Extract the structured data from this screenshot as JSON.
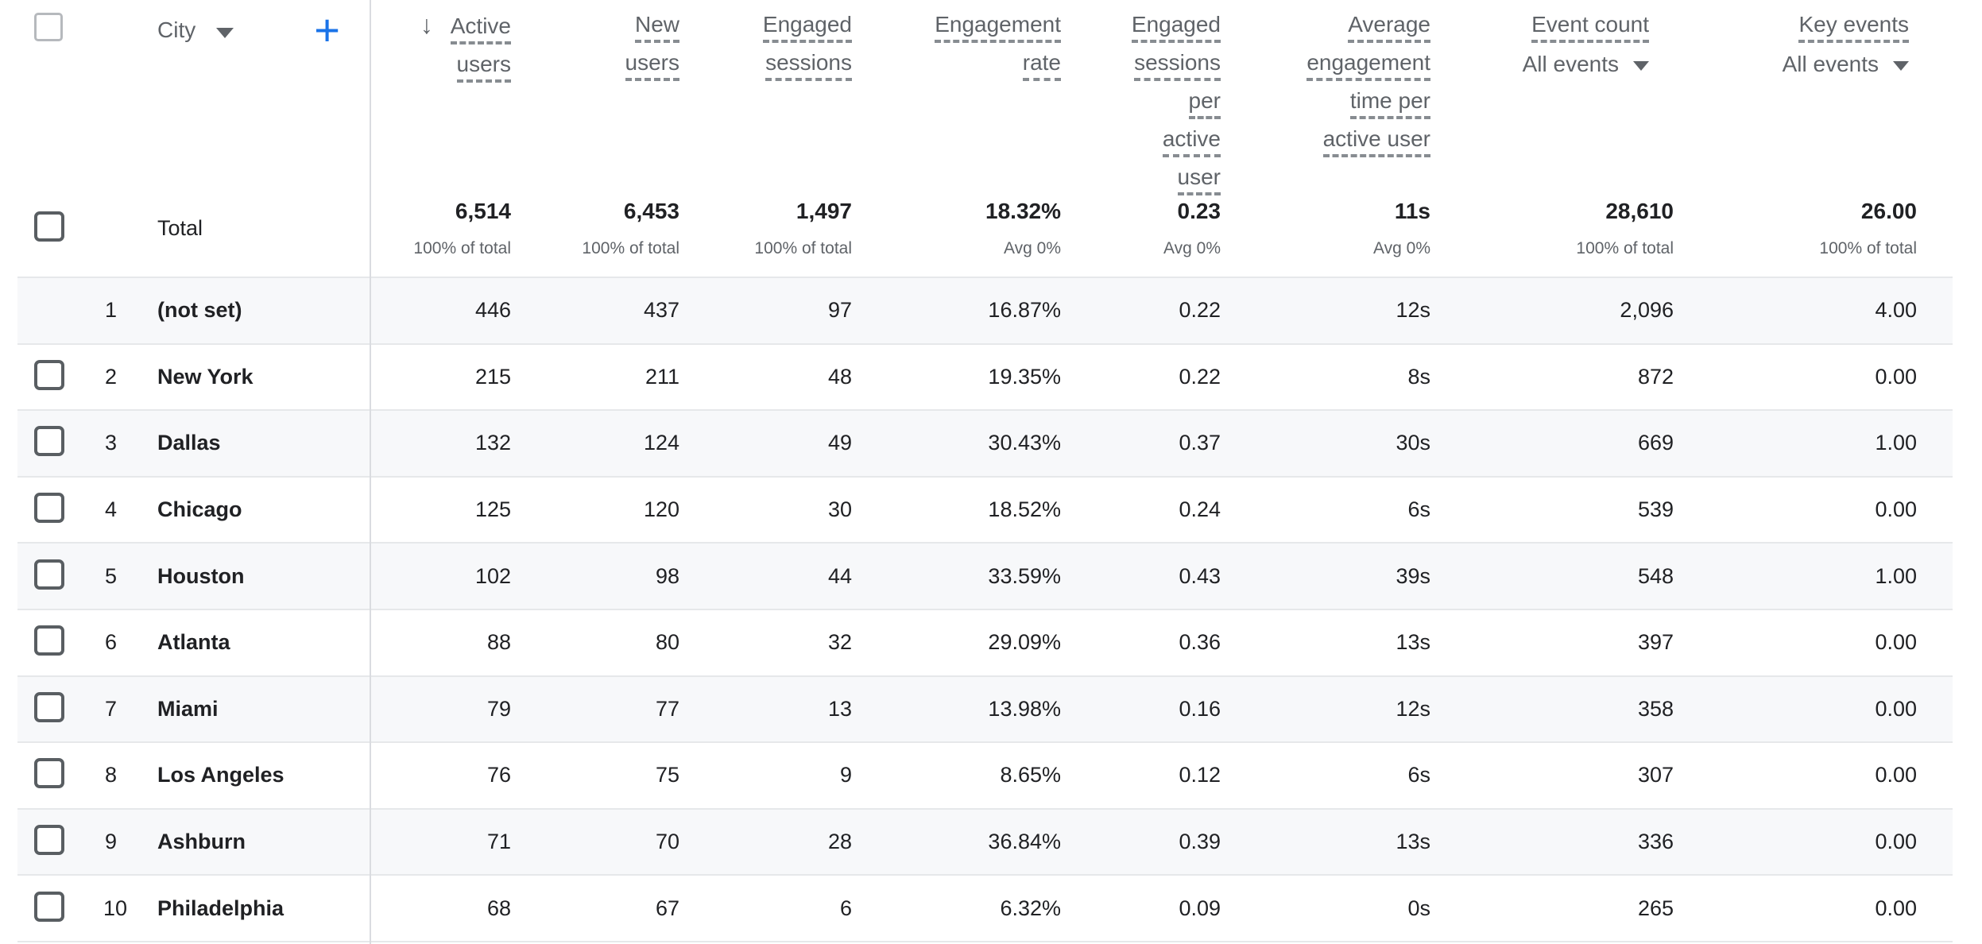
{
  "accent_color": "#1a73e8",
  "divider_color": "#dadce0",
  "stripe_color": "#f7f8fa",
  "header": {
    "dimension": {
      "label": "City"
    },
    "add_button": "+",
    "sort_icon": "↓",
    "columns": [
      {
        "id": "active-users",
        "lines": [
          "Active",
          "users"
        ],
        "sorted": true
      },
      {
        "id": "new-users",
        "lines": [
          "New",
          "users"
        ]
      },
      {
        "id": "engaged-sessions",
        "lines": [
          "Engaged",
          "sessions"
        ]
      },
      {
        "id": "engagement-rate",
        "lines": [
          "Engagement",
          "rate"
        ]
      },
      {
        "id": "engaged-sessions-per-active-user",
        "lines": [
          "Engaged",
          "sessions",
          "per",
          "active",
          "user"
        ]
      },
      {
        "id": "average-engagement-time-per-active-user",
        "lines": [
          "Average",
          "engagement",
          "time per",
          "active user"
        ]
      },
      {
        "id": "event-count",
        "lines": [
          "Event count"
        ],
        "filter": "All events"
      },
      {
        "id": "key-events",
        "lines": [
          "Key events"
        ],
        "filter": "All events"
      }
    ]
  },
  "total_row": {
    "label": "Total",
    "cells": [
      {
        "value": "6,514",
        "sub": "100% of total"
      },
      {
        "value": "6,453",
        "sub": "100% of total"
      },
      {
        "value": "1,497",
        "sub": "100% of total"
      },
      {
        "value": "18.32%",
        "sub": "Avg 0%"
      },
      {
        "value": "0.23",
        "sub": "Avg 0%"
      },
      {
        "value": "11s",
        "sub": "Avg 0%"
      },
      {
        "value": "28,610",
        "sub": "100% of total"
      },
      {
        "value": "26.00",
        "sub": "100% of total"
      }
    ]
  },
  "rows": [
    {
      "index": "1",
      "city": "(not set)",
      "has_checkbox": false,
      "values": [
        "446",
        "437",
        "97",
        "16.87%",
        "0.22",
        "12s",
        "2,096",
        "4.00"
      ]
    },
    {
      "index": "2",
      "city": "New York",
      "has_checkbox": true,
      "values": [
        "215",
        "211",
        "48",
        "19.35%",
        "0.22",
        "8s",
        "872",
        "0.00"
      ]
    },
    {
      "index": "3",
      "city": "Dallas",
      "has_checkbox": true,
      "values": [
        "132",
        "124",
        "49",
        "30.43%",
        "0.37",
        "30s",
        "669",
        "1.00"
      ]
    },
    {
      "index": "4",
      "city": "Chicago",
      "has_checkbox": true,
      "values": [
        "125",
        "120",
        "30",
        "18.52%",
        "0.24",
        "6s",
        "539",
        "0.00"
      ]
    },
    {
      "index": "5",
      "city": "Houston",
      "has_checkbox": true,
      "values": [
        "102",
        "98",
        "44",
        "33.59%",
        "0.43",
        "39s",
        "548",
        "1.00"
      ]
    },
    {
      "index": "6",
      "city": "Atlanta",
      "has_checkbox": true,
      "values": [
        "88",
        "80",
        "32",
        "29.09%",
        "0.36",
        "13s",
        "397",
        "0.00"
      ]
    },
    {
      "index": "7",
      "city": "Miami",
      "has_checkbox": true,
      "values": [
        "79",
        "77",
        "13",
        "13.98%",
        "0.16",
        "12s",
        "358",
        "0.00"
      ]
    },
    {
      "index": "8",
      "city": "Los Angeles",
      "has_checkbox": true,
      "values": [
        "76",
        "75",
        "9",
        "8.65%",
        "0.12",
        "6s",
        "307",
        "0.00"
      ]
    },
    {
      "index": "9",
      "city": "Ashburn",
      "has_checkbox": true,
      "values": [
        "71",
        "70",
        "28",
        "36.84%",
        "0.39",
        "13s",
        "336",
        "0.00"
      ]
    },
    {
      "index": "10",
      "city": "Philadelphia",
      "has_checkbox": true,
      "values": [
        "68",
        "67",
        "6",
        "6.32%",
        "0.09",
        "0s",
        "265",
        "0.00"
      ]
    }
  ]
}
